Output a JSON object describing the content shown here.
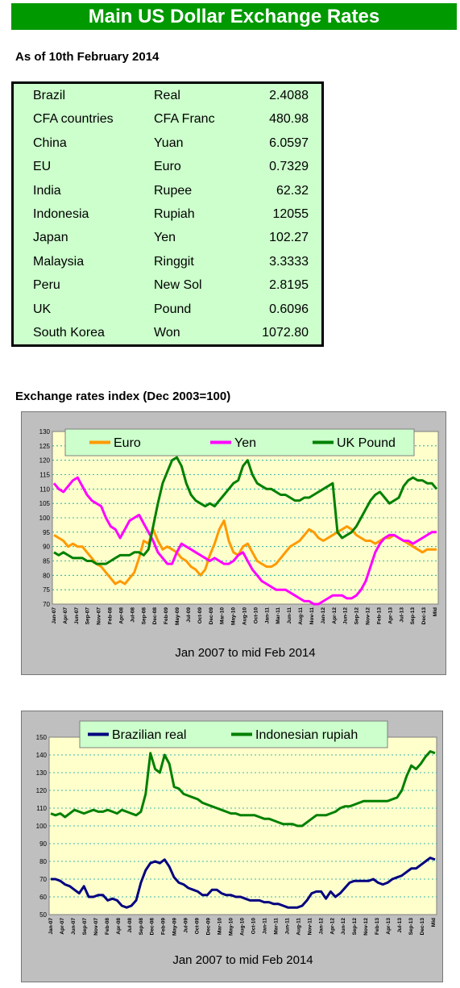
{
  "header": {
    "title": "Main US Dollar Exchange Rates"
  },
  "rates": {
    "as_of": "As of 10th February 2014",
    "rows": [
      {
        "country": "Brazil",
        "currency": "Real",
        "rate": "2.4088"
      },
      {
        "country": "CFA countries",
        "currency": "CFA Franc",
        "rate": "480.98"
      },
      {
        "country": "China",
        "currency": "Yuan",
        "rate": "6.0597"
      },
      {
        "country": "EU",
        "currency": "Euro",
        "rate": "0.7329"
      },
      {
        "country": "India",
        "currency": "Rupee",
        "rate": "62.32"
      },
      {
        "country": "Indonesia",
        "currency": "Rupiah",
        "rate": "12055"
      },
      {
        "country": "Japan",
        "currency": "Yen",
        "rate": "102.27"
      },
      {
        "country": "Malaysia",
        "currency": "Ringgit",
        "rate": "3.3333"
      },
      {
        "country": "Peru",
        "currency": "New Sol",
        "rate": "2.8195"
      },
      {
        "country": "UK",
        "currency": "Pound",
        "rate": "0.6096"
      },
      {
        "country": "South Korea",
        "currency": "Won",
        "rate": "1072.80"
      }
    ]
  },
  "chart1_heading": "Exchange rates index (Dec 2003=100)",
  "chart_data": [
    {
      "type": "line",
      "title": "",
      "xlabel": "Jan 2007 to mid Feb 2014",
      "ylabel": "",
      "ylim": [
        70,
        130
      ],
      "yticks": [
        70,
        75,
        80,
        85,
        90,
        95,
        100,
        105,
        110,
        115,
        120,
        125,
        130
      ],
      "grid": true,
      "legend_position": "top",
      "x_tick_labels": [
        "Jan-07",
        "Apr-07",
        "Jun-07",
        "Sep-07",
        "Nov-07",
        "Feb-08",
        "Apr-08",
        "Jul-08",
        "Sep-08",
        "Dec-08",
        "Feb-09",
        "May-09",
        "Jul-09",
        "Oct-09",
        "Dec-09",
        "Mar-10",
        "May-10",
        "Aug-10",
        "Oct-10",
        "Jan-11",
        "Mar-11",
        "Jun-11",
        "Aug-11",
        "Nov-11",
        "Jan-12",
        "Apr-12",
        "Jun-12",
        "Sep-12",
        "Nov-12",
        "Feb-13",
        "Apr-13",
        "Jul-13",
        "Sep-13",
        "Dec-13",
        "Mid"
      ],
      "series": [
        {
          "name": "Euro",
          "color": "#ff9900",
          "values": [
            94,
            93,
            92,
            90,
            91,
            90,
            90,
            88,
            86,
            84,
            83,
            81,
            79,
            77,
            78,
            77,
            79,
            81,
            86,
            92,
            91,
            96,
            92,
            89,
            90,
            89,
            88,
            86,
            85,
            83,
            82,
            80,
            82,
            87,
            91,
            96,
            99,
            92,
            88,
            87,
            90,
            91,
            88,
            85,
            84,
            83,
            83,
            84,
            86,
            88,
            90,
            91,
            92,
            94,
            96,
            95,
            93,
            92,
            93,
            94,
            95,
            96,
            97,
            96,
            94,
            93,
            92,
            92,
            91,
            92,
            93,
            93,
            94,
            93,
            92,
            91,
            90,
            89,
            88,
            89,
            89,
            89
          ]
        },
        {
          "name": "Yen",
          "color": "#ff00ff",
          "values": [
            112,
            110,
            109,
            111,
            113,
            114,
            111,
            108,
            106,
            105,
            104,
            100,
            97,
            96,
            93,
            96,
            99,
            100,
            101,
            98,
            95,
            92,
            88,
            86,
            84,
            84,
            88,
            91,
            90,
            89,
            88,
            87,
            86,
            85,
            86,
            85,
            84,
            84,
            85,
            87,
            88,
            85,
            82,
            80,
            78,
            77,
            76,
            75,
            75,
            75,
            74,
            73,
            72,
            71,
            71,
            70,
            70,
            71,
            72,
            73,
            73,
            73,
            72,
            72,
            73,
            75,
            78,
            83,
            88,
            91,
            93,
            94,
            94,
            93,
            92,
            92,
            91,
            92,
            93,
            94,
            95,
            95
          ]
        },
        {
          "name": "UK Pound",
          "color": "#008000",
          "values": [
            88,
            87,
            88,
            87,
            86,
            86,
            86,
            85,
            85,
            84,
            84,
            84,
            85,
            86,
            87,
            87,
            87,
            88,
            88,
            87,
            89,
            97,
            105,
            112,
            116,
            120,
            121,
            118,
            112,
            108,
            106,
            105,
            104,
            105,
            104,
            106,
            108,
            110,
            112,
            113,
            118,
            120,
            115,
            112,
            111,
            110,
            110,
            109,
            108,
            108,
            107,
            106,
            106,
            107,
            107,
            108,
            109,
            110,
            111,
            112,
            95,
            93,
            94,
            95,
            97,
            100,
            103,
            106,
            108,
            109,
            107,
            105,
            106,
            107,
            111,
            113,
            114,
            113,
            113,
            112,
            112,
            110
          ]
        }
      ]
    },
    {
      "type": "line",
      "title": "",
      "xlabel": "Jan 2007 to mid Feb 2014",
      "ylabel": "",
      "ylim": [
        50,
        150
      ],
      "yticks": [
        50,
        60,
        70,
        80,
        90,
        100,
        110,
        120,
        130,
        140,
        150
      ],
      "grid": true,
      "legend_position": "top",
      "x_tick_labels": [
        "Jan-07",
        "Apr-07",
        "Jun-07",
        "Sep-07",
        "Nov-07",
        "Feb-08",
        "Apr-08",
        "Jul-08",
        "Sep-08",
        "Dec-08",
        "Feb-09",
        "May-09",
        "Jul-09",
        "Oct-09",
        "Dec-09",
        "Mar-10",
        "May-10",
        "Aug-10",
        "Oct-10",
        "Jan-11",
        "Mar-11",
        "Jun-11",
        "Aug-11",
        "Nov-11",
        "Jan-12",
        "Apr-12",
        "Jun-12",
        "Sep-12",
        "Nov-12",
        "Feb-13",
        "Apr-13",
        "Jul-13",
        "Sep-13",
        "Dec-13",
        "Mid"
      ],
      "series": [
        {
          "name": "Brazilian real",
          "color": "#000080",
          "values": [
            70,
            70,
            69,
            67,
            66,
            64,
            62,
            66,
            60,
            60,
            61,
            61,
            58,
            59,
            58,
            55,
            54,
            55,
            58,
            68,
            75,
            79,
            80,
            79,
            81,
            77,
            71,
            68,
            67,
            65,
            64,
            63,
            61,
            61,
            64,
            64,
            62,
            61,
            61,
            60,
            60,
            59,
            58,
            58,
            58,
            57,
            57,
            56,
            56,
            55,
            54,
            54,
            54,
            55,
            58,
            62,
            63,
            63,
            59,
            63,
            60,
            62,
            65,
            68,
            69,
            69,
            69,
            69,
            70,
            68,
            67,
            68,
            70,
            71,
            72,
            74,
            76,
            76,
            78,
            80,
            82,
            81
          ]
        },
        {
          "name": "Indonesian rupiah",
          "color": "#008000",
          "values": [
            107,
            106,
            107,
            105,
            107,
            109,
            108,
            107,
            108,
            109,
            108,
            108,
            109,
            108,
            107,
            109,
            108,
            107,
            106,
            108,
            118,
            141,
            132,
            130,
            140,
            135,
            122,
            121,
            118,
            117,
            116,
            115,
            113,
            112,
            111,
            110,
            109,
            108,
            107,
            107,
            106,
            106,
            106,
            106,
            105,
            104,
            104,
            103,
            102,
            101,
            101,
            101,
            100,
            100,
            102,
            104,
            106,
            106,
            106,
            107,
            108,
            110,
            111,
            111,
            112,
            113,
            114,
            114,
            114,
            114,
            114,
            114,
            115,
            116,
            120,
            128,
            134,
            132,
            135,
            139,
            142,
            141
          ]
        }
      ]
    }
  ]
}
